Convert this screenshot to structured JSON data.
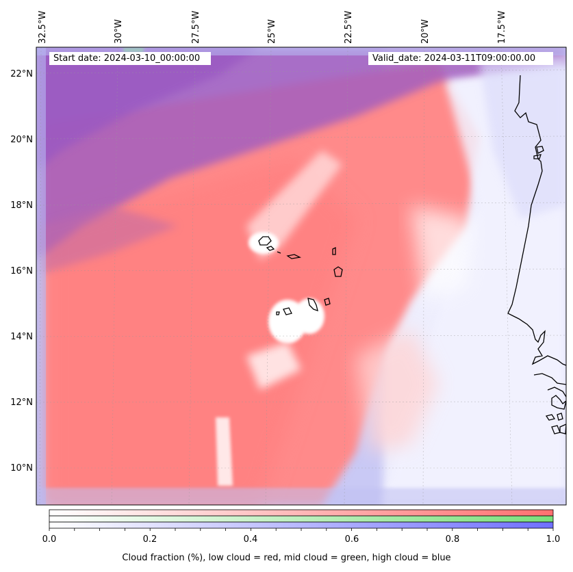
{
  "map": {
    "start_date_label": "Start date: 2024-03-10_00:00:00",
    "valid_date_label": "Valid_date: 2024-03-11T09:00:00.00",
    "lon_ticks": [
      "32.5°W",
      "30°W",
      "27.5°W",
      "25°W",
      "22.5°W",
      "20°W",
      "17.5°W"
    ],
    "lat_ticks": [
      "22°N",
      "20°N",
      "18°N",
      "16°N",
      "14°N",
      "12°N",
      "10°N"
    ],
    "field": "cloud fraction",
    "layers": [
      "low cloud",
      "mid cloud",
      "high cloud"
    ],
    "layer_colors": {
      "low": "#ff7070",
      "mid": "#7be07b",
      "high": "#7070ff"
    }
  },
  "colorbar": {
    "range": [
      0.0,
      1.0
    ],
    "tick_labels": [
      "0.0",
      "0.2",
      "0.4",
      "0.6",
      "0.8",
      "1.0"
    ],
    "caption": "Cloud fraction (%), low cloud = red, mid cloud = green, high cloud = blue"
  }
}
